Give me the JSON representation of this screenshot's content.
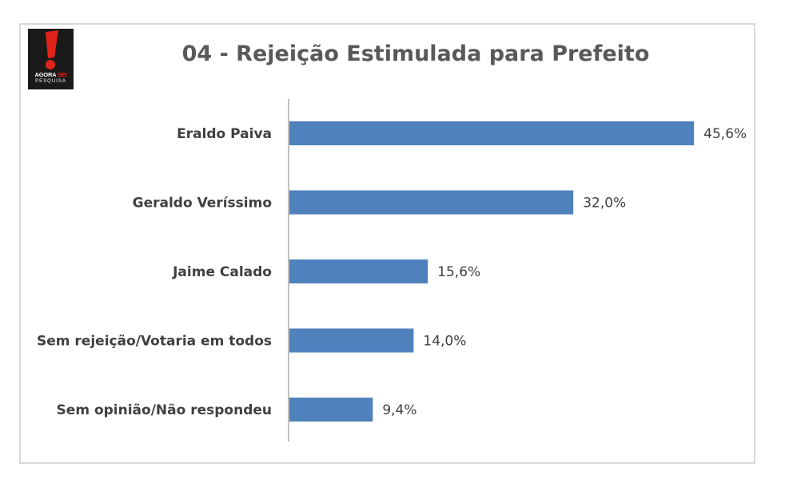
{
  "logo": {
    "brand": "AGORA",
    "brand_accent": "SEI",
    "subtitle": "PESQUISA"
  },
  "colors": {
    "bar": "#4f81bd",
    "axis": "#bfbfbf",
    "text": "#404040",
    "title": "#595959"
  },
  "chart_data": {
    "type": "bar",
    "orientation": "horizontal",
    "title": "04 - Rejeição Estimulada para Prefeito",
    "categories": [
      "Eraldo Paiva",
      "Geraldo Veríssimo",
      "Jaime Calado",
      "Sem rejeição/Votaria em todos",
      "Sem opinião/Não respondeu"
    ],
    "values": [
      45.6,
      32.0,
      15.6,
      14.0,
      9.4
    ],
    "value_labels": [
      "45,6%",
      "32,0%",
      "15,6%",
      "14,0%",
      "9,4%"
    ],
    "xlim": [
      0,
      50
    ],
    "grid": false,
    "legend": "none"
  }
}
